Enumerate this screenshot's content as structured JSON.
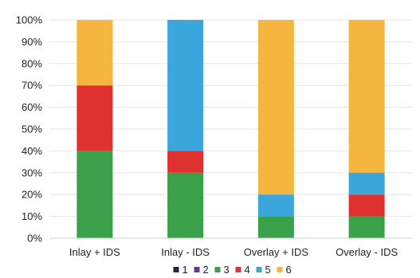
{
  "chart_data": {
    "type": "bar",
    "stacked": true,
    "categories": [
      "Inlay + IDS",
      "Inlay - IDS",
      "Overlay + IDS",
      "Overlay - IDS"
    ],
    "series": [
      {
        "name": "1",
        "color": "#1f2a44",
        "values": [
          0,
          0,
          0,
          0
        ]
      },
      {
        "name": "2",
        "color": "#7030a0",
        "values": [
          0,
          0,
          0,
          0
        ]
      },
      {
        "name": "3",
        "color": "#3aa14a",
        "values": [
          40,
          30,
          10,
          10
        ]
      },
      {
        "name": "4",
        "color": "#e03131",
        "values": [
          30,
          10,
          0,
          10
        ]
      },
      {
        "name": "5",
        "color": "#3aa6dc",
        "values": [
          0,
          60,
          10,
          10
        ]
      },
      {
        "name": "6",
        "color": "#f4b63e",
        "values": [
          30,
          0,
          80,
          70
        ]
      }
    ],
    "y_ticks": [
      "0%",
      "10%",
      "20%",
      "30%",
      "40%",
      "50%",
      "60%",
      "70%",
      "80%",
      "90%",
      "100%"
    ],
    "ylim": [
      0,
      100
    ],
    "grid": true,
    "legend_position": "bottom",
    "title": "",
    "xlabel": "",
    "ylabel": ""
  }
}
